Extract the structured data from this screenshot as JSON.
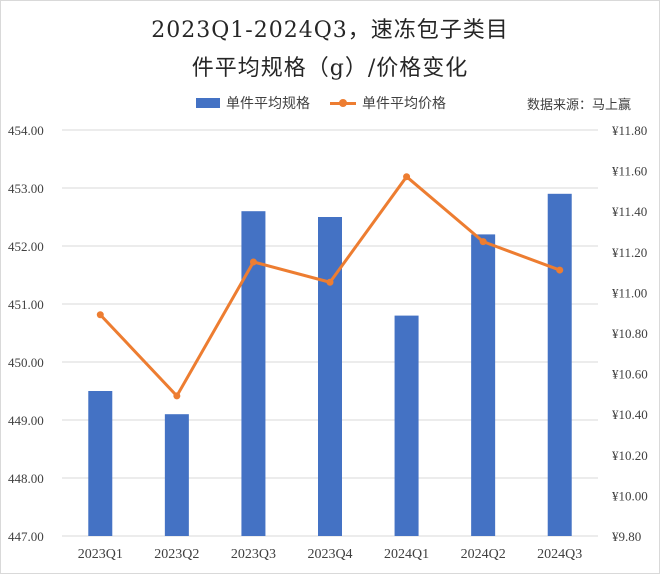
{
  "title": {
    "line1": "2023Q1-2024Q3，速冻包子类目",
    "line2": "件平均规格（g）/价格变化"
  },
  "legend": {
    "bar_label": "单件平均规格",
    "line_label": "单件平均价格"
  },
  "source": "数据来源：马上赢",
  "colors": {
    "bar": "#4472c4",
    "line": "#ed7d31",
    "grid": "#d9d9d9",
    "text": "#404040"
  },
  "chart_data": {
    "type": "bar+line",
    "title": "2023Q1-2024Q3，速冻包子类目件平均规格（g）/价格变化",
    "categories": [
      "2023Q1",
      "2023Q2",
      "2023Q3",
      "2023Q4",
      "2024Q1",
      "2024Q2",
      "2024Q3"
    ],
    "series": [
      {
        "name": "单件平均规格",
        "type": "bar",
        "axis": "left",
        "values": [
          449.5,
          449.1,
          452.6,
          452.5,
          450.8,
          452.2,
          452.9
        ]
      },
      {
        "name": "单件平均价格",
        "type": "line",
        "axis": "right",
        "values": [
          10.89,
          10.49,
          11.15,
          11.05,
          11.57,
          11.25,
          11.11
        ]
      }
    ],
    "left_axis": {
      "ylim": [
        447,
        454
      ],
      "ticks": [
        "447.00",
        "448.00",
        "449.00",
        "450.00",
        "451.00",
        "452.00",
        "453.00",
        "454.00"
      ]
    },
    "right_axis": {
      "ylim": [
        9.8,
        11.8
      ],
      "ticks": [
        "¥9.80",
        "¥10.00",
        "¥10.20",
        "¥10.40",
        "¥10.60",
        "¥10.80",
        "¥11.00",
        "¥11.20",
        "¥11.40",
        "¥11.60",
        "¥11.80"
      ]
    },
    "xlabel": "",
    "ylabel": "",
    "grid": true,
    "legend_position": "top",
    "annotation": "数据来源：马上赢"
  }
}
